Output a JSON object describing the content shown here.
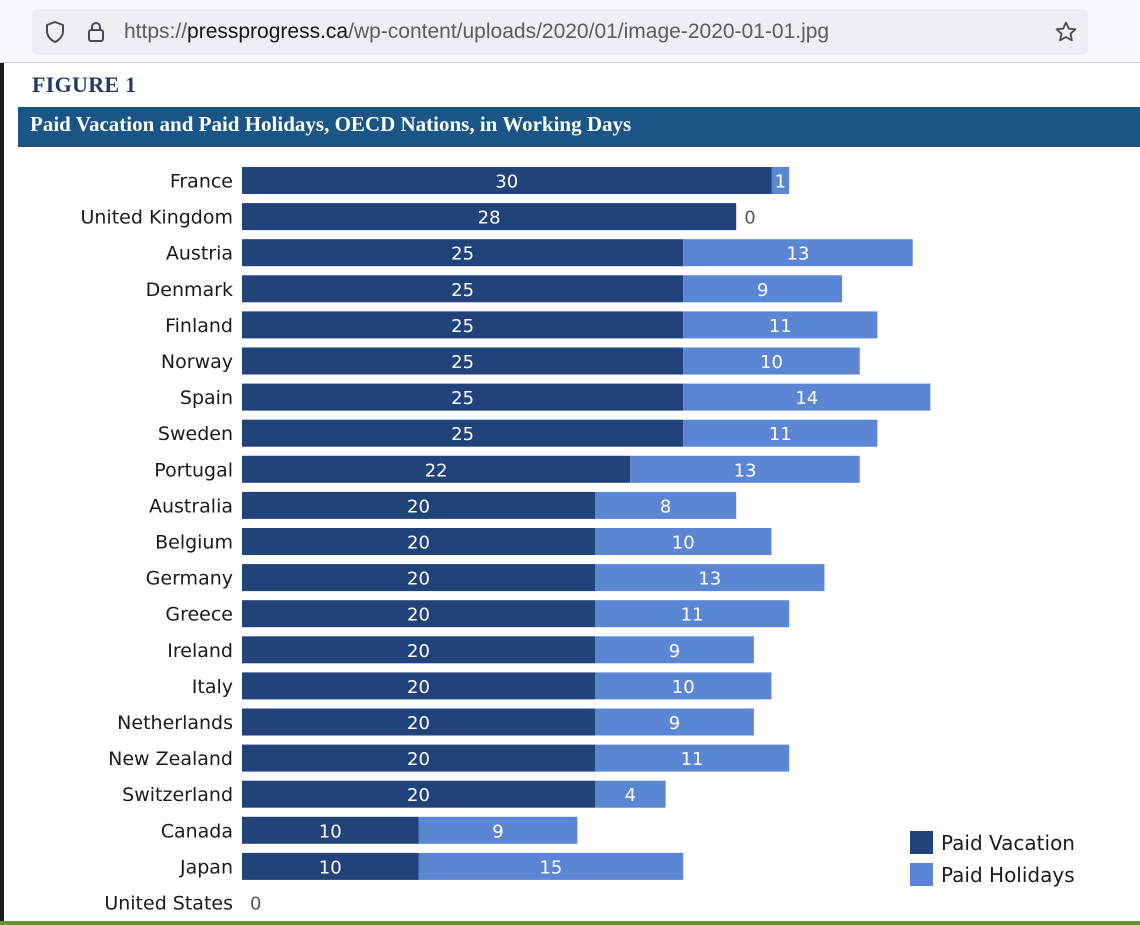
{
  "browser": {
    "url_prefix": "https://",
    "url_host": "pressprogress.ca",
    "url_path": "/wp-content/uploads/2020/01/image-2020-01-01.jpg"
  },
  "figure": {
    "label": "FIGURE 1"
  },
  "colors": {
    "paid_vacation": "#22427a",
    "paid_holidays": "#5b86d4",
    "title_bar": "#1b5585"
  },
  "chart_data": {
    "type": "bar",
    "orientation": "horizontal",
    "stacked": true,
    "title": "Paid Vacation and Paid Holidays, OECD Nations, in Working Days",
    "categories": [
      "France",
      "United Kingdom",
      "Austria",
      "Denmark",
      "Finland",
      "Norway",
      "Spain",
      "Sweden",
      "Portugal",
      "Australia",
      "Belgium",
      "Germany",
      "Greece",
      "Ireland",
      "Italy",
      "Netherlands",
      "New Zealand",
      "Switzerland",
      "Canada",
      "Japan",
      "United States"
    ],
    "series": [
      {
        "name": "Paid Vacation",
        "values": [
          30,
          28,
          25,
          25,
          25,
          25,
          25,
          25,
          22,
          20,
          20,
          20,
          20,
          20,
          20,
          20,
          20,
          20,
          10,
          10,
          0
        ]
      },
      {
        "name": "Paid Holidays",
        "values": [
          1,
          0,
          13,
          9,
          11,
          10,
          14,
          11,
          13,
          8,
          10,
          13,
          11,
          9,
          10,
          9,
          11,
          4,
          9,
          15,
          0
        ]
      }
    ],
    "xlim": [
      0,
      40
    ],
    "grid": false,
    "legend": "bottom-right"
  }
}
